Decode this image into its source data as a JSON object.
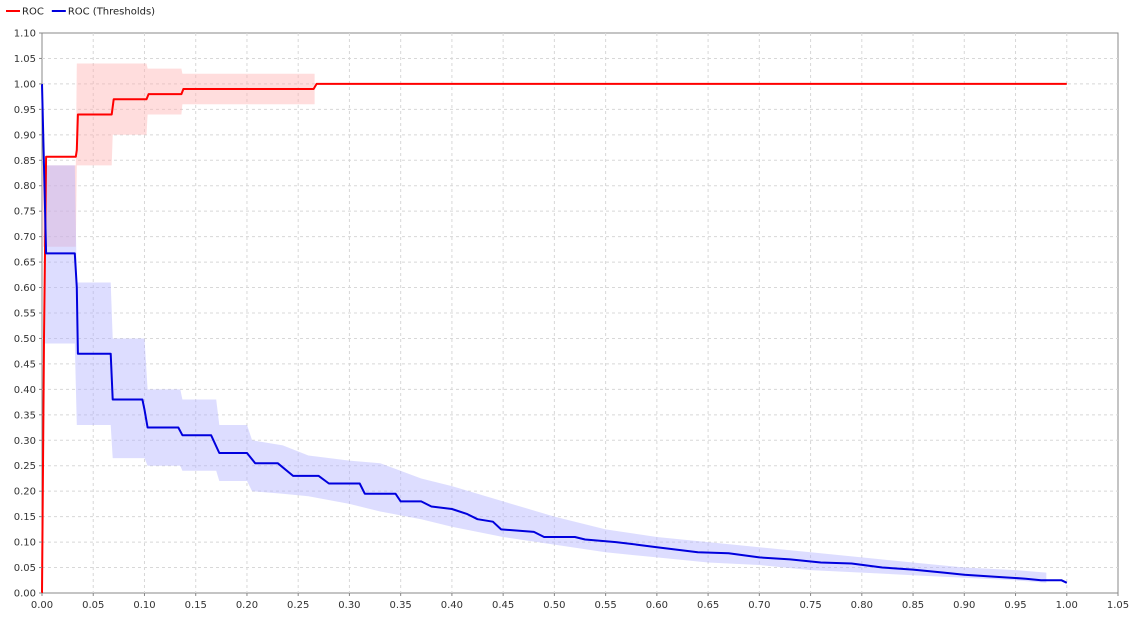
{
  "chart_data": {
    "type": "line",
    "title": "",
    "xlabel": "",
    "ylabel": "",
    "xlim": [
      0,
      1.05
    ],
    "ylim": [
      0,
      1.1
    ],
    "grid": true,
    "legend_position": "top-left",
    "x_ticks": [
      "0.00",
      "0.05",
      "0.10",
      "0.15",
      "0.20",
      "0.25",
      "0.30",
      "0.35",
      "0.40",
      "0.45",
      "0.50",
      "0.55",
      "0.60",
      "0.65",
      "0.70",
      "0.75",
      "0.80",
      "0.85",
      "0.90",
      "0.95",
      "1.00",
      "1.05"
    ],
    "y_ticks": [
      "0.00",
      "0.05",
      "0.10",
      "0.15",
      "0.20",
      "0.25",
      "0.30",
      "0.35",
      "0.40",
      "0.45",
      "0.50",
      "0.55",
      "0.60",
      "0.65",
      "0.70",
      "0.75",
      "0.80",
      "0.85",
      "0.90",
      "0.95",
      "1.00",
      "1.05",
      "1.10"
    ],
    "series": [
      {
        "name": "ROC",
        "color": "#ff0000",
        "band_color": "#ffb3b3",
        "points": [
          [
            0.0,
            0.0
          ],
          [
            0.002,
            0.5
          ],
          [
            0.004,
            0.857
          ],
          [
            0.033,
            0.857
          ],
          [
            0.034,
            0.87
          ],
          [
            0.035,
            0.94
          ],
          [
            0.068,
            0.94
          ],
          [
            0.07,
            0.97
          ],
          [
            0.102,
            0.97
          ],
          [
            0.104,
            0.98
          ],
          [
            0.136,
            0.98
          ],
          [
            0.138,
            0.99
          ],
          [
            0.265,
            0.99
          ],
          [
            0.268,
            1.0
          ],
          [
            1.0,
            1.0
          ]
        ],
        "band": [
          [
            0.0,
            0.68,
            0.84
          ],
          [
            0.033,
            0.68,
            0.84
          ],
          [
            0.034,
            0.84,
            1.04
          ],
          [
            0.068,
            0.84,
            1.04
          ],
          [
            0.069,
            0.9,
            1.04
          ],
          [
            0.102,
            0.9,
            1.04
          ],
          [
            0.103,
            0.94,
            1.03
          ],
          [
            0.136,
            0.94,
            1.03
          ],
          [
            0.137,
            0.96,
            1.02
          ],
          [
            0.266,
            0.96,
            1.02
          ]
        ]
      },
      {
        "name": "ROC (Thresholds)",
        "color": "#0000dd",
        "band_color": "#b3b3ff",
        "points": [
          [
            0.0,
            1.0
          ],
          [
            0.004,
            0.667
          ],
          [
            0.032,
            0.667
          ],
          [
            0.034,
            0.6
          ],
          [
            0.035,
            0.47
          ],
          [
            0.067,
            0.47
          ],
          [
            0.069,
            0.38
          ],
          [
            0.098,
            0.38
          ],
          [
            0.1,
            0.36
          ],
          [
            0.103,
            0.325
          ],
          [
            0.133,
            0.325
          ],
          [
            0.137,
            0.31
          ],
          [
            0.165,
            0.31
          ],
          [
            0.173,
            0.275
          ],
          [
            0.2,
            0.275
          ],
          [
            0.208,
            0.255
          ],
          [
            0.23,
            0.255
          ],
          [
            0.245,
            0.23
          ],
          [
            0.27,
            0.23
          ],
          [
            0.28,
            0.215
          ],
          [
            0.31,
            0.215
          ],
          [
            0.315,
            0.195
          ],
          [
            0.345,
            0.195
          ],
          [
            0.35,
            0.18
          ],
          [
            0.37,
            0.18
          ],
          [
            0.38,
            0.17
          ],
          [
            0.4,
            0.165
          ],
          [
            0.415,
            0.155
          ],
          [
            0.425,
            0.145
          ],
          [
            0.44,
            0.14
          ],
          [
            0.448,
            0.125
          ],
          [
            0.48,
            0.12
          ],
          [
            0.49,
            0.11
          ],
          [
            0.52,
            0.11
          ],
          [
            0.53,
            0.105
          ],
          [
            0.56,
            0.1
          ],
          [
            0.58,
            0.095
          ],
          [
            0.6,
            0.09
          ],
          [
            0.62,
            0.085
          ],
          [
            0.64,
            0.08
          ],
          [
            0.67,
            0.078
          ],
          [
            0.7,
            0.07
          ],
          [
            0.73,
            0.066
          ],
          [
            0.76,
            0.06
          ],
          [
            0.79,
            0.058
          ],
          [
            0.82,
            0.05
          ],
          [
            0.85,
            0.046
          ],
          [
            0.88,
            0.04
          ],
          [
            0.9,
            0.036
          ],
          [
            0.93,
            0.032
          ],
          [
            0.96,
            0.028
          ],
          [
            0.975,
            0.025
          ],
          [
            0.995,
            0.025
          ],
          [
            1.0,
            0.02
          ]
        ],
        "band": [
          [
            0.003,
            0.49,
            0.84
          ],
          [
            0.032,
            0.49,
            0.84
          ],
          [
            0.034,
            0.33,
            0.61
          ],
          [
            0.067,
            0.33,
            0.61
          ],
          [
            0.069,
            0.265,
            0.5
          ],
          [
            0.1,
            0.265,
            0.5
          ],
          [
            0.103,
            0.25,
            0.4
          ],
          [
            0.135,
            0.25,
            0.4
          ],
          [
            0.137,
            0.24,
            0.38
          ],
          [
            0.17,
            0.24,
            0.38
          ],
          [
            0.173,
            0.22,
            0.33
          ],
          [
            0.2,
            0.22,
            0.33
          ],
          [
            0.205,
            0.2,
            0.3
          ],
          [
            0.235,
            0.195,
            0.29
          ],
          [
            0.26,
            0.19,
            0.27
          ],
          [
            0.3,
            0.175,
            0.26
          ],
          [
            0.33,
            0.16,
            0.255
          ],
          [
            0.37,
            0.145,
            0.225
          ],
          [
            0.4,
            0.13,
            0.21
          ],
          [
            0.45,
            0.11,
            0.18
          ],
          [
            0.5,
            0.095,
            0.15
          ],
          [
            0.55,
            0.08,
            0.125
          ],
          [
            0.6,
            0.07,
            0.11
          ],
          [
            0.65,
            0.06,
            0.1
          ],
          [
            0.7,
            0.055,
            0.09
          ],
          [
            0.75,
            0.045,
            0.08
          ],
          [
            0.8,
            0.04,
            0.07
          ],
          [
            0.85,
            0.035,
            0.06
          ],
          [
            0.9,
            0.03,
            0.05
          ],
          [
            0.95,
            0.025,
            0.045
          ],
          [
            0.98,
            0.02,
            0.04
          ]
        ]
      }
    ]
  }
}
